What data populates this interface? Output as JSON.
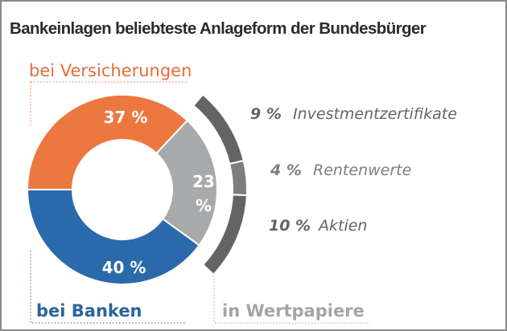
{
  "chart_data": {
    "type": "pie",
    "variant": "donut-with-breakdown-arc",
    "title": "Bankeinlagen beliebteste Anlageform der Bundesbürger",
    "slices": [
      {
        "name": "bei Versicherungen",
        "value": 37,
        "label": "37 %",
        "color": "#ec7840",
        "label_color": "#e46d39"
      },
      {
        "name": "in Wertpapiere",
        "value": 23,
        "label_lines": [
          "23",
          "%"
        ],
        "color": "#a8a9ab",
        "label_color": "#a3a4a6"
      },
      {
        "name": "bei Banken",
        "value": 40,
        "label": "40 %",
        "color": "#2a6aaa",
        "label_color": "#2a63a1"
      }
    ],
    "breakdown_of": "in Wertpapiere",
    "breakdown": [
      {
        "name": "Investmentzertifikate",
        "value": 9,
        "label": "9 %",
        "color": "#636466"
      },
      {
        "name": "Rentenwerte",
        "value": 4,
        "label": "4 %",
        "color": "#7d7e80"
      },
      {
        "name": "Aktien",
        "value": 10,
        "label": "10 %",
        "color": "#636466"
      }
    ],
    "unit": "%",
    "legend": "none"
  }
}
